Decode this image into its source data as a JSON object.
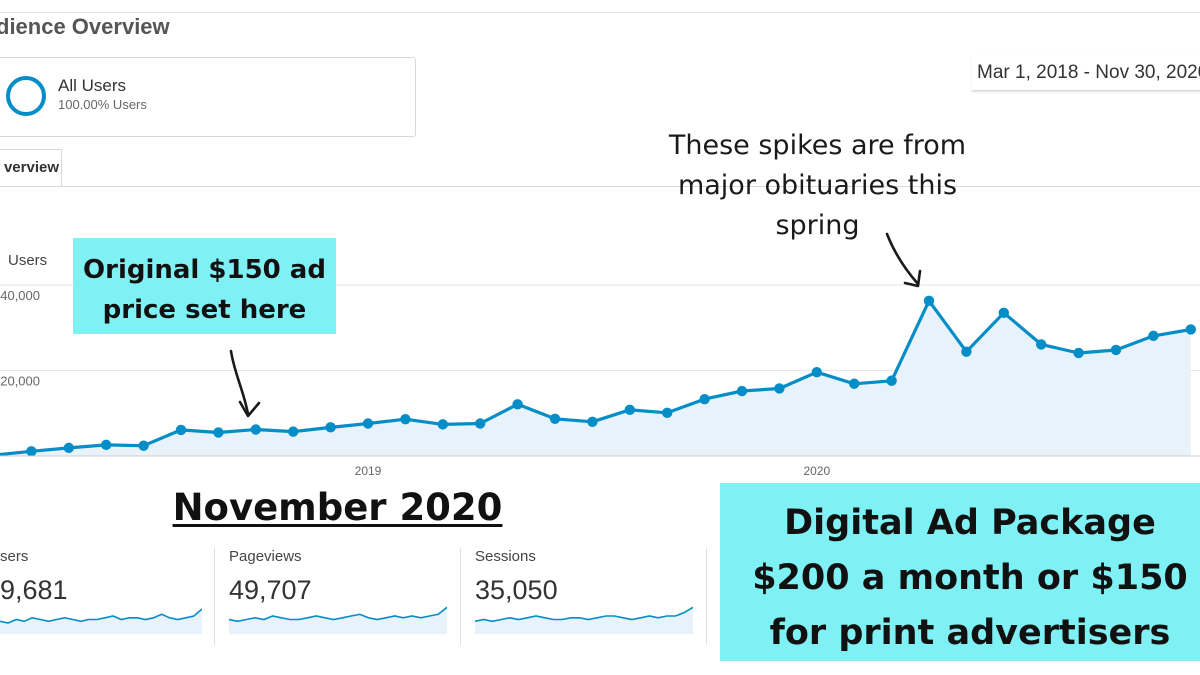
{
  "page": {
    "title": "dience Overview"
  },
  "segment": {
    "name": "All Users",
    "pct": "100.00% Users"
  },
  "date_range": "Mar 1, 2018 - Nov 30, 2020",
  "tabs": [
    {
      "label": "verview",
      "active": true
    }
  ],
  "metric_selector": {
    "label": "Users"
  },
  "colors": {
    "line": "#058dc7",
    "area": "#e8f2fa",
    "callout": "#7ff0f4"
  },
  "chart_data": {
    "type": "area",
    "title": "",
    "ylabel": "Users",
    "ytick_labels": [
      "40,000",
      "20,000"
    ],
    "yticks": [
      40000,
      20000
    ],
    "ylim": [
      0,
      40000
    ],
    "xtick_labels": [
      "2019",
      "2020"
    ],
    "x": [
      "2018-03",
      "2018-04",
      "2018-05",
      "2018-06",
      "2018-07",
      "2018-08",
      "2018-09",
      "2018-10",
      "2018-11",
      "2018-12",
      "2019-01",
      "2019-02",
      "2019-03",
      "2019-04",
      "2019-05",
      "2019-06",
      "2019-07",
      "2019-08",
      "2019-09",
      "2019-10",
      "2019-11",
      "2019-12",
      "2020-01",
      "2020-02",
      "2020-03",
      "2020-04",
      "2020-05",
      "2020-06",
      "2020-07",
      "2020-08",
      "2020-09",
      "2020-10",
      "2020-11"
    ],
    "series": [
      {
        "values": [
          200,
          1100,
          1900,
          2600,
          2400,
          6100,
          5500,
          6200,
          5700,
          6700,
          7600,
          8600,
          7400,
          7600,
          12100,
          8700,
          8000,
          10800,
          10100,
          13300,
          15200,
          15800,
          19600,
          16900,
          17600,
          36300,
          24400,
          33500,
          26100,
          24100,
          24800,
          28100,
          29600
        ]
      }
    ],
    "grid": true,
    "legend": "none"
  },
  "annotations": {
    "left_callout": [
      "Original $150 ad",
      "price set here"
    ],
    "right_note": [
      "These spikes are from",
      "major obituaries this",
      "spring"
    ]
  },
  "heading": "November 2020",
  "metrics": [
    {
      "name": "sers",
      "value": "9,681",
      "spark": [
        5,
        4,
        6,
        5,
        7,
        6,
        5,
        6,
        7,
        6,
        5,
        6,
        6,
        7,
        8,
        6,
        7,
        7,
        6,
        7,
        9,
        7,
        6,
        7,
        8,
        12
      ]
    },
    {
      "name": "Pageviews",
      "value": "49,707",
      "spark": [
        6,
        5,
        6,
        7,
        6,
        8,
        7,
        6,
        6,
        7,
        8,
        7,
        6,
        7,
        8,
        9,
        7,
        6,
        7,
        8,
        7,
        8,
        7,
        8,
        9,
        13
      ]
    },
    {
      "name": "Sessions",
      "value": "35,050",
      "spark": [
        5,
        6,
        5,
        6,
        7,
        6,
        7,
        8,
        7,
        6,
        6,
        7,
        7,
        6,
        7,
        8,
        8,
        7,
        6,
        7,
        8,
        7,
        8,
        8,
        10,
        13
      ]
    }
  ],
  "callout_right": [
    "Digital Ad Package",
    "$200 a month or $150",
    "for print advertisers"
  ]
}
